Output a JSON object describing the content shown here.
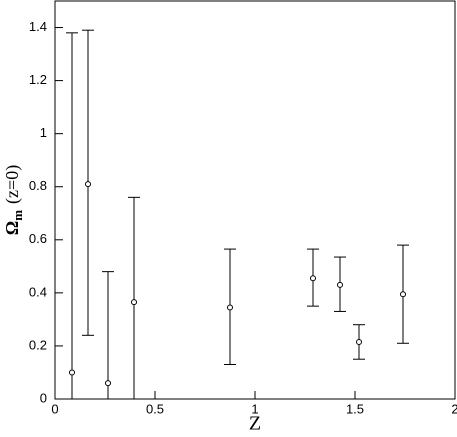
{
  "chart_data": {
    "type": "errorbar",
    "x_label": "Z",
    "y_label": {
      "symbol": "Ω",
      "subscript": "m",
      "rest": "(z=0)"
    },
    "x": [
      0.085,
      0.165,
      0.265,
      0.395,
      0.875,
      1.29,
      1.425,
      1.52,
      1.74
    ],
    "values": [
      0.1,
      0.81,
      0.06,
      0.365,
      0.345,
      0.455,
      0.43,
      0.215,
      0.395
    ],
    "lower": [
      0,
      0.24,
      0,
      0,
      0.13,
      0.35,
      0.33,
      0.15,
      0.21
    ],
    "upper": [
      1.38,
      1.39,
      0.48,
      0.76,
      0.565,
      0.565,
      0.535,
      0.28,
      0.58
    ],
    "color": "#000000",
    "xlim": [
      0,
      2
    ],
    "xticks": [
      0,
      0.5,
      1,
      1.5,
      2
    ],
    "ylim": [
      0,
      1.5
    ],
    "yticks": [
      0,
      0.2,
      0.4,
      0.6,
      0.8,
      1,
      1.2,
      1.4
    ]
  }
}
